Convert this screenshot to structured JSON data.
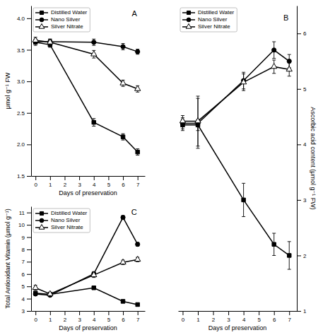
{
  "chart_data": [
    {
      "type": "line",
      "title": "A",
      "x": [
        0,
        1,
        4,
        6,
        7
      ],
      "xlabel": "Days of preservation",
      "ylabel": "μmol g⁻¹ FW",
      "xlim": [
        -0.3,
        7.5
      ],
      "xticks": [
        0,
        1,
        2,
        3,
        4,
        5,
        6,
        7
      ],
      "ylim": [
        1.5,
        4.2
      ],
      "yticks": [
        1.5,
        {
          "value": 2.0,
          "label": "2.0"
        },
        2.5,
        {
          "value": 3.0,
          "label": "3.0"
        },
        3.5,
        {
          "value": 4.0,
          "label": "4.0"
        }
      ],
      "grid": false,
      "legend": "top-left",
      "series": [
        {
          "name": "Distilled Water",
          "color": "black",
          "marker": "square",
          "values": [
            3.62,
            3.58,
            2.35,
            2.12,
            1.88
          ],
          "errors": [
            0.05,
            0.04,
            0.06,
            0.05,
            0.05
          ]
        },
        {
          "name": "Nano Silver",
          "color": "black",
          "marker": "circle",
          "values": [
            3.63,
            3.63,
            3.62,
            3.55,
            3.47
          ],
          "errors": [
            0.04,
            0.04,
            0.05,
            0.05,
            0.04
          ]
        },
        {
          "name": "Silver Nitrate",
          "color": "black",
          "marker": "triangle-open",
          "values": [
            3.65,
            3.62,
            3.43,
            2.97,
            2.88
          ],
          "errors": [
            0.05,
            0.05,
            0.06,
            0.05,
            0.05
          ]
        }
      ]
    },
    {
      "type": "line",
      "title": "B",
      "x": [
        0,
        1,
        4,
        6,
        7
      ],
      "xlabel": "Days of preservation",
      "ylabel": "Ascorbic acid content (μmol g⁻¹ FW)",
      "xlim": [
        -0.3,
        7.5
      ],
      "xticks": [
        0,
        1,
        2,
        3,
        4,
        5,
        6,
        7
      ],
      "ylim": [
        1.0,
        6.5
      ],
      "yticks": [
        1,
        2,
        3,
        4,
        5,
        6
      ],
      "grid": false,
      "legend": "top-left",
      "series": [
        {
          "name": "Distilled Water",
          "color": "black",
          "marker": "square",
          "values": [
            4.35,
            4.35,
            3.0,
            2.2,
            2.0
          ],
          "errors": [
            0.1,
            0.1,
            0.3,
            0.2,
            0.25
          ]
        },
        {
          "name": "Nano Silver",
          "color": "black",
          "marker": "circle",
          "values": [
            4.38,
            4.38,
            5.15,
            5.7,
            5.5
          ],
          "errors": [
            0.1,
            0.45,
            0.15,
            0.15,
            0.12
          ]
        },
        {
          "name": "Silver Nitrate",
          "color": "black",
          "marker": "triangle-open",
          "values": [
            4.42,
            4.42,
            5.12,
            5.4,
            5.35
          ],
          "errors": [
            0.1,
            0.45,
            0.15,
            0.12,
            0.12
          ]
        }
      ]
    },
    {
      "type": "line",
      "title": "C",
      "x": [
        0,
        1,
        4,
        6,
        7
      ],
      "xlabel": "Days of preservation",
      "ylabel": "Total Antioxidant Vitamin (μmol g⁻¹)",
      "xlim": [
        -0.3,
        7.5
      ],
      "xticks": [
        0,
        1,
        2,
        3,
        4,
        5,
        6,
        7
      ],
      "ylim": [
        3.0,
        11.5
      ],
      "yticks": [
        3,
        4,
        5,
        6,
        7,
        8,
        9,
        10,
        11
      ],
      "grid": false,
      "legend": "top-left",
      "series": [
        {
          "name": "Distilled Water",
          "color": "black",
          "marker": "square",
          "values": [
            4.45,
            4.35,
            4.88,
            3.78,
            3.52
          ],
          "errors": [
            0.1,
            0.08,
            0.12,
            0.12,
            0.1
          ]
        },
        {
          "name": "Nano Silver",
          "color": "black",
          "marker": "circle",
          "values": [
            4.38,
            4.28,
            6.02,
            10.6,
            8.42
          ],
          "errors": [
            0.12,
            0.1,
            0.18,
            0.15,
            0.15
          ]
        },
        {
          "name": "Silver Nitrate",
          "color": "black",
          "marker": "triangle-open",
          "values": [
            4.88,
            4.38,
            5.92,
            6.95,
            7.18
          ],
          "errors": [
            0.2,
            0.15,
            0.2,
            0.18,
            0.18
          ]
        }
      ]
    }
  ]
}
